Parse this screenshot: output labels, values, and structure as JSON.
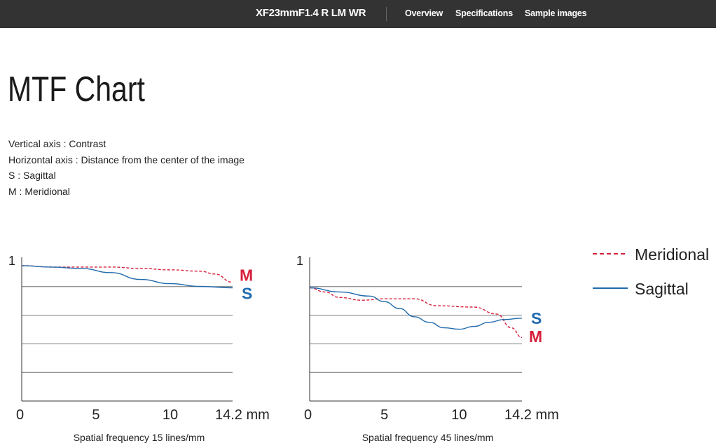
{
  "header": {
    "product": "XF23mmF1.4 R LM WR",
    "nav": [
      "Overview",
      "Specifications",
      "Sample images"
    ]
  },
  "page_title": "MTF Chart",
  "description": [
    "Vertical axis : Contrast",
    "Horizontal axis : Distance from the center of the image",
    "S : Sagittal",
    "M : Meridional"
  ],
  "legend": {
    "meridional": "Meridional",
    "sagittal": "Sagittal"
  },
  "colors": {
    "meridional": "#d71f3a",
    "sagittal": "#1f6aad",
    "topbar": "#333333"
  },
  "chart_data": [
    {
      "type": "line",
      "title": "",
      "xlabel": "Spatial frequency 15 lines/mm",
      "x_ticks": [
        "0",
        "5",
        "10",
        "14.2 mm"
      ],
      "x_tick_values": [
        0,
        5,
        10,
        14.2
      ],
      "y_ticks": [
        "1"
      ],
      "xlim": [
        0,
        14.2
      ],
      "ylim": [
        0,
        1
      ],
      "grid": "horizontal",
      "end_labels": {
        "meridional": "M",
        "sagittal": "S"
      },
      "series": [
        {
          "name": "Meridional",
          "style": "dashed",
          "x": [
            0,
            2,
            4,
            6,
            8,
            10,
            12,
            13,
            14.2
          ],
          "y": [
            0.98,
            0.97,
            0.97,
            0.97,
            0.96,
            0.95,
            0.94,
            0.92,
            0.86
          ]
        },
        {
          "name": "Sagittal",
          "style": "solid",
          "x": [
            0,
            2,
            4,
            6,
            8,
            10,
            12,
            14.2
          ],
          "y": [
            0.98,
            0.97,
            0.96,
            0.93,
            0.88,
            0.85,
            0.83,
            0.82
          ]
        }
      ]
    },
    {
      "type": "line",
      "title": "",
      "xlabel": "Spatial frequency 45 lines/mm",
      "x_ticks": [
        "0",
        "5",
        "10",
        "14.2 mm"
      ],
      "x_tick_values": [
        0,
        5,
        10,
        14.2
      ],
      "y_ticks": [
        "1"
      ],
      "xlim": [
        0,
        14.2
      ],
      "ylim": [
        0,
        1
      ],
      "grid": "horizontal",
      "end_labels": {
        "meridional": "M",
        "sagittal": "S"
      },
      "series": [
        {
          "name": "Meridional",
          "style": "dashed",
          "x": [
            0,
            1,
            2,
            3.5,
            5,
            7,
            8.5,
            11,
            12.5,
            13.5,
            14.2
          ],
          "y": [
            0.82,
            0.79,
            0.75,
            0.73,
            0.74,
            0.74,
            0.69,
            0.68,
            0.63,
            0.53,
            0.46
          ]
        },
        {
          "name": "Sagittal",
          "style": "solid",
          "x": [
            0,
            2,
            4,
            5,
            6,
            7,
            8,
            9,
            10,
            11,
            12,
            13,
            14.2
          ],
          "y": [
            0.82,
            0.79,
            0.76,
            0.72,
            0.67,
            0.61,
            0.57,
            0.53,
            0.52,
            0.54,
            0.57,
            0.59,
            0.6
          ]
        }
      ]
    }
  ]
}
